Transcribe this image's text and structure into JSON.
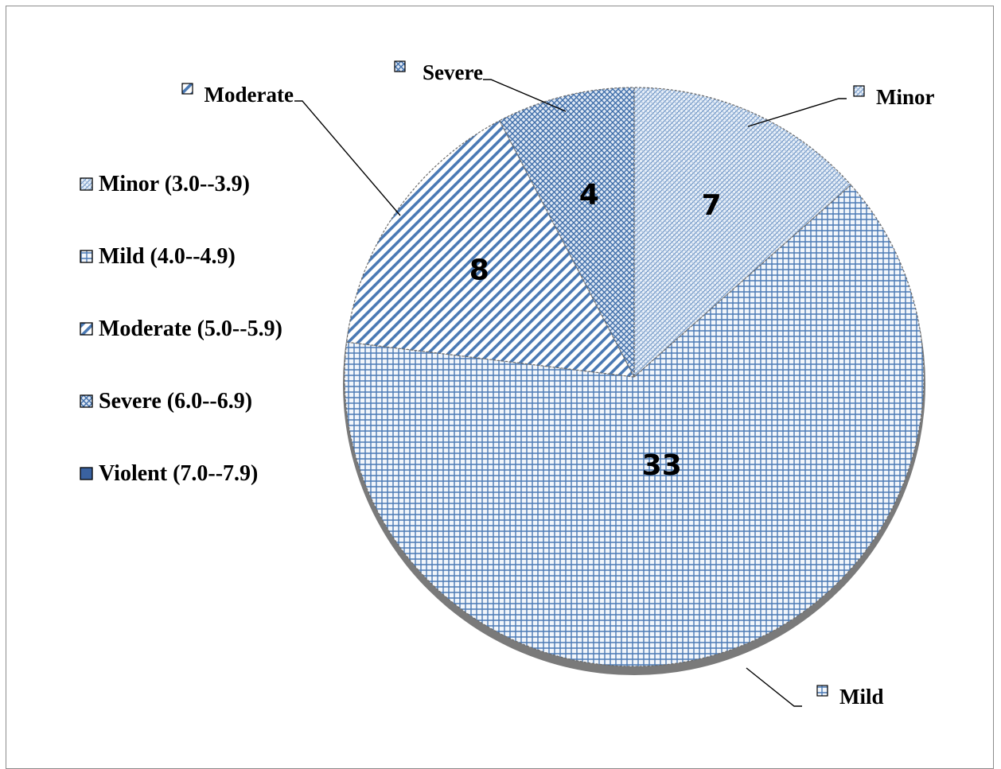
{
  "chart_data": {
    "type": "pie",
    "title": "",
    "categories": [
      "Minor",
      "Mild",
      "Moderate",
      "Severe"
    ],
    "values": [
      7,
      33,
      8,
      4
    ],
    "slice_labels": [
      "Minor",
      "Mild",
      "Moderate",
      "Severe"
    ],
    "legend": {
      "placement": "left",
      "entries": [
        "Minor (3.0--3.9)",
        "Mild (4.0--4.9)",
        "Moderate (5.0--5.9)",
        "Severe (6.0--6.9)",
        "Violent (7.0--7.9)"
      ]
    },
    "colors": {
      "line": "#4a79b4",
      "fill_light": "#dce7f4",
      "fill_dark": "#3a62a0",
      "edge": "#6b6b6b"
    }
  }
}
